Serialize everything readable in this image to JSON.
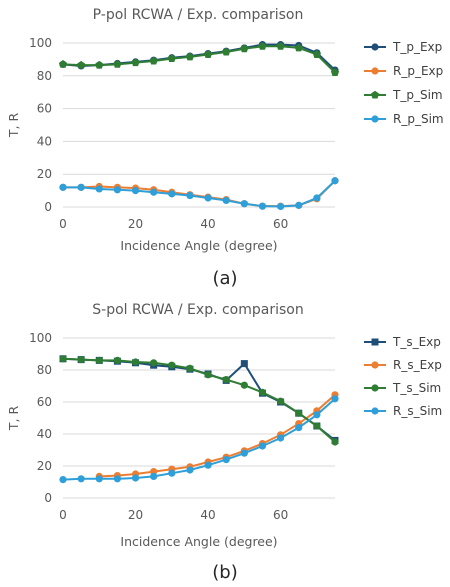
{
  "chart_data": [
    {
      "type": "line",
      "title": "P-pol RCWA / Exp. comparison",
      "xlabel": "Incidence Angle (degree)",
      "ylabel": "T, R",
      "xlim": [
        0,
        75
      ],
      "ylim": [
        0,
        100
      ],
      "xticks": [
        0,
        20,
        40,
        60
      ],
      "yticks": [
        0,
        20,
        40,
        60,
        80,
        100
      ],
      "grid": "horizontal",
      "legend_position": "right",
      "panel_label": "(a)",
      "series": [
        {
          "name": "T_p_Exp",
          "color": "#1f4e79",
          "marker": "circle",
          "x": [
            0,
            5,
            10,
            15,
            20,
            25,
            30,
            35,
            40,
            45,
            50,
            55,
            60,
            65,
            70,
            75
          ],
          "y": [
            87,
            86,
            86.5,
            87.5,
            88.5,
            89.5,
            91,
            92,
            93.5,
            95,
            97,
            99,
            99,
            98.5,
            94,
            83.5
          ]
        },
        {
          "name": "R_p_Exp",
          "color": "#ed7d31",
          "marker": "circle",
          "x": [
            0,
            5,
            10,
            15,
            20,
            25,
            30,
            35,
            40,
            45,
            50,
            55,
            60,
            65,
            70,
            75
          ],
          "y": [
            12,
            12,
            12.5,
            12,
            11.5,
            10.5,
            9,
            7.5,
            6,
            4.5,
            2,
            0.5,
            0.5,
            1,
            5,
            16
          ]
        },
        {
          "name": "T_p_Sim",
          "color": "#2e7d32",
          "marker": "pentagon",
          "x": [
            0,
            5,
            10,
            15,
            20,
            25,
            30,
            35,
            40,
            45,
            50,
            55,
            60,
            65,
            70,
            75
          ],
          "y": [
            87,
            86.5,
            86.5,
            87,
            88,
            89,
            90.5,
            91.5,
            93,
            94.5,
            96.5,
            98,
            98,
            97,
            93,
            82
          ]
        },
        {
          "name": "R_p_Sim",
          "color": "#2e9fd8",
          "marker": "circle",
          "x": [
            0,
            5,
            10,
            15,
            20,
            25,
            30,
            35,
            40,
            45,
            50,
            55,
            60,
            65,
            70,
            75
          ],
          "y": [
            12,
            12,
            11,
            10.5,
            10,
            9,
            8,
            7,
            5.5,
            4,
            2,
            0.5,
            0.3,
            1,
            5.5,
            16
          ]
        }
      ]
    },
    {
      "type": "line",
      "title": "S-pol RCWA / Exp. comparison",
      "xlabel": "Incidence Angle (degree)",
      "ylabel": "T, R",
      "xlim": [
        0,
        75
      ],
      "ylim": [
        0,
        100
      ],
      "xticks": [
        0,
        20,
        40,
        60
      ],
      "yticks": [
        0,
        20,
        40,
        60,
        80,
        100
      ],
      "grid": "horizontal",
      "legend_position": "right",
      "panel_label": "(b)",
      "series": [
        {
          "name": "T_s_Exp",
          "color": "#1f4e79",
          "marker": "square",
          "x": [
            0,
            5,
            10,
            15,
            20,
            25,
            30,
            35,
            40,
            45,
            50,
            55,
            60,
            65,
            70,
            75
          ],
          "y": [
            87,
            86.5,
            86,
            85.5,
            84.5,
            83,
            82,
            80.5,
            77.5,
            73.5,
            84,
            65.5,
            60,
            53,
            45,
            36
          ]
        },
        {
          "name": "R_s_Exp",
          "color": "#ed7d31",
          "marker": "circle",
          "x": [
            10,
            15,
            20,
            25,
            30,
            35,
            40,
            45,
            50,
            55,
            60,
            65,
            70,
            75
          ],
          "y": [
            13.5,
            14,
            15,
            16.5,
            18,
            19.5,
            22.5,
            25.5,
            29.5,
            34,
            39.5,
            46.5,
            54.5,
            64.5
          ]
        },
        {
          "name": "T_s_Sim",
          "color": "#2e7d32",
          "marker": "circle",
          "x": [
            0,
            5,
            10,
            15,
            20,
            25,
            30,
            35,
            40,
            45,
            50,
            55,
            60,
            65,
            70,
            75
          ],
          "y": [
            87,
            86.5,
            86,
            86,
            85,
            84.5,
            83,
            81,
            77,
            74,
            70.5,
            66,
            60.5,
            53,
            45,
            35
          ]
        },
        {
          "name": "R_s_Sim",
          "color": "#2e9fd8",
          "marker": "circle",
          "x": [
            0,
            5,
            10,
            15,
            20,
            25,
            30,
            35,
            40,
            45,
            50,
            55,
            60,
            65,
            70,
            75
          ],
          "y": [
            11.5,
            12,
            12,
            12,
            12.5,
            13.5,
            15.5,
            17.5,
            20.5,
            24,
            28,
            32.5,
            37.5,
            44,
            52,
            62
          ]
        }
      ]
    }
  ]
}
